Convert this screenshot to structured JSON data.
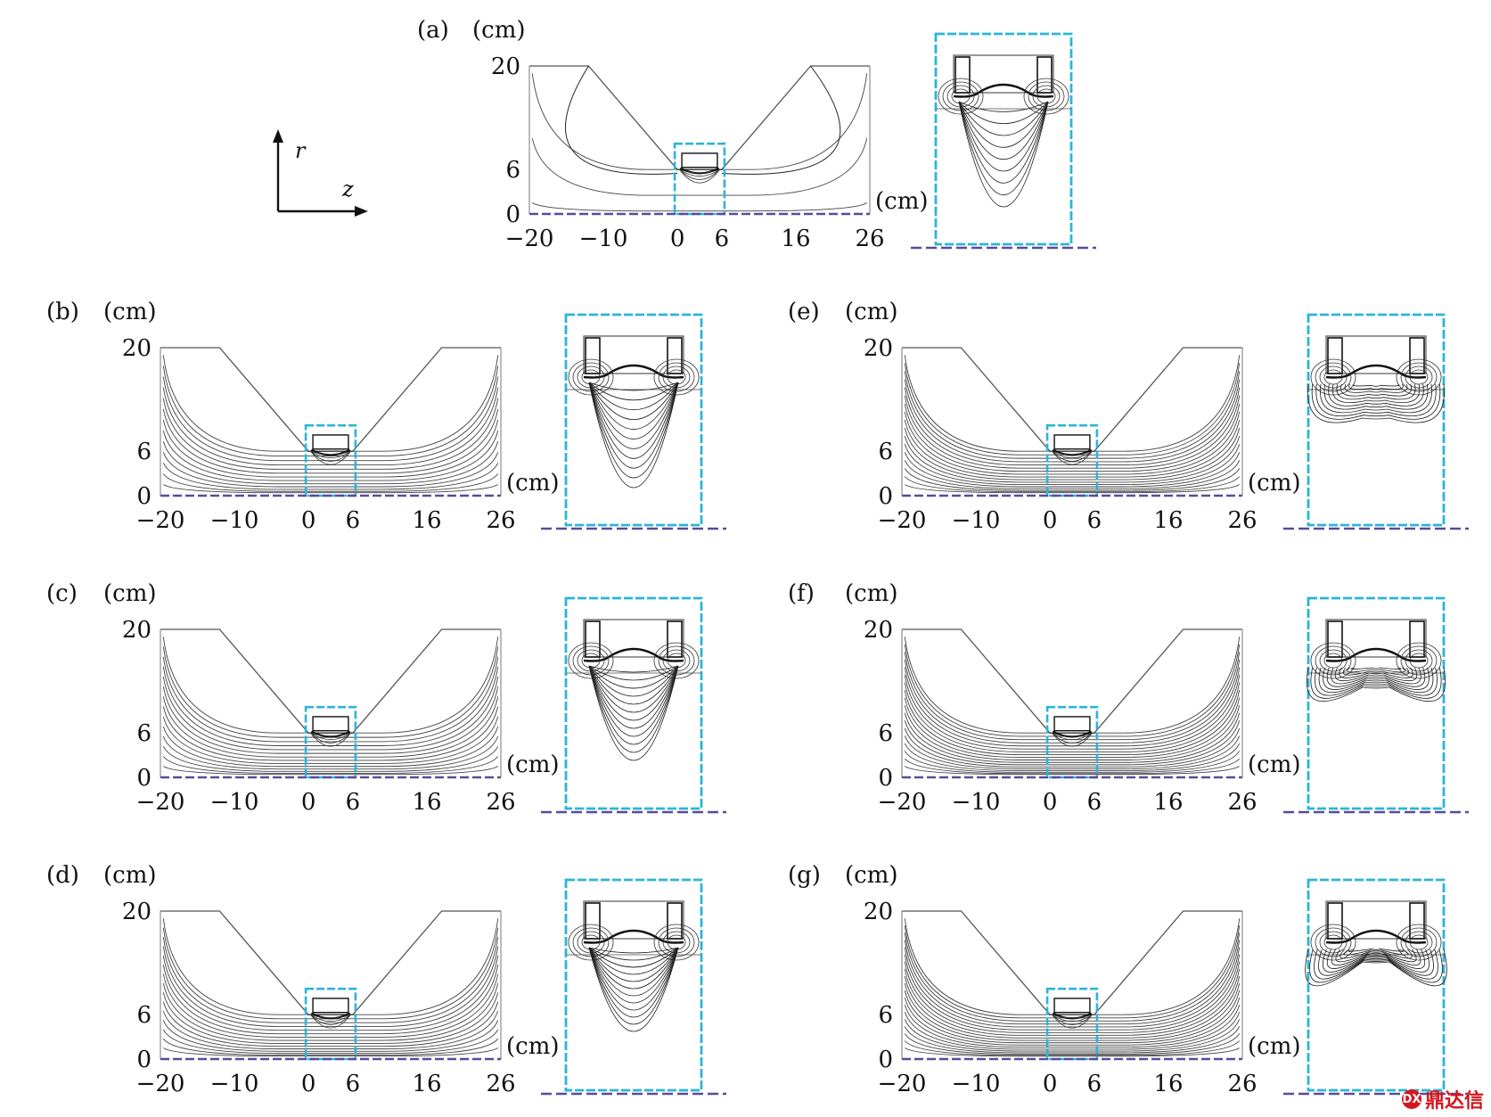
{
  "axes": {
    "r": "r",
    "z": "z"
  },
  "unit": "(cm)",
  "y_ticks": [
    "20",
    "6",
    "0"
  ],
  "x_ticks": [
    "−20",
    "−10",
    "0",
    "6",
    "16",
    "26"
  ],
  "panels": [
    {
      "id": "a",
      "label": "(a)",
      "inner": 1.0,
      "fanEnd": 3,
      "zoomN": 9,
      "mode": 0
    },
    {
      "id": "b",
      "label": "(b)",
      "inner": 1.0,
      "fanEnd": 13,
      "zoomN": 11,
      "mode": 0
    },
    {
      "id": "c",
      "label": "(c)",
      "inner": 0.9,
      "fanEnd": 14,
      "zoomN": 12,
      "mode": 0
    },
    {
      "id": "d",
      "label": "(d)",
      "inner": 0.8,
      "fanEnd": 15,
      "zoomN": 12,
      "mode": 0
    },
    {
      "id": "e",
      "label": "(e)",
      "inner": 0.5,
      "fanEnd": 17,
      "zoomN": 12,
      "mode": 1
    },
    {
      "id": "f",
      "label": "(f)",
      "inner": 0.3,
      "fanEnd": 18,
      "zoomN": 12,
      "mode": 2
    },
    {
      "id": "g",
      "label": "(g)",
      "inner": 0.2,
      "fanEnd": 19,
      "zoomN": 11,
      "mode": 3
    }
  ],
  "colors": {
    "zoom_box": "#2bb5d6",
    "axis_line": "#5a4a9a",
    "contour": "#222222",
    "watermark": "#d4161c"
  },
  "watermark": {
    "logo": "DX",
    "text": "鼎达信"
  }
}
